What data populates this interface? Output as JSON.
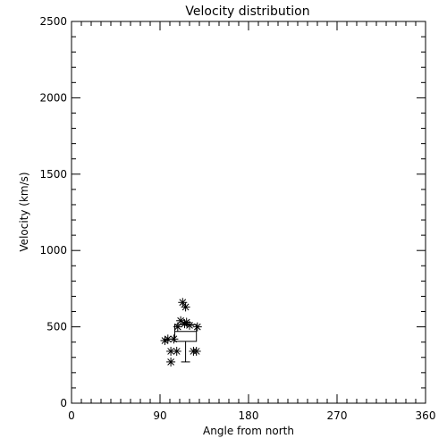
{
  "chart_data": {
    "type": "scatter",
    "title": "Velocity distribution",
    "xlabel": "Angle from north",
    "ylabel": "Velocity (km/s)",
    "xlim": [
      0,
      360
    ],
    "ylim": [
      0,
      2500
    ],
    "xticks": [
      0,
      90,
      180,
      270,
      360
    ],
    "yticks": [
      0,
      500,
      1000,
      1500,
      2000,
      2500
    ],
    "xtick_labels": [
      "0",
      "90",
      "180",
      "270",
      "360"
    ],
    "ytick_labels": [
      "0",
      "500",
      "1000",
      "1500",
      "2000",
      "2500"
    ],
    "grid": false,
    "legend": "none",
    "marker": "asterisk",
    "points": [
      {
        "x": 95,
        "y": 410
      },
      {
        "x": 98,
        "y": 420
      },
      {
        "x": 101,
        "y": 340
      },
      {
        "x": 101,
        "y": 270
      },
      {
        "x": 104,
        "y": 420
      },
      {
        "x": 107,
        "y": 340
      },
      {
        "x": 108,
        "y": 500
      },
      {
        "x": 111,
        "y": 540
      },
      {
        "x": 113,
        "y": 660
      },
      {
        "x": 115,
        "y": 520
      },
      {
        "x": 116,
        "y": 630
      },
      {
        "x": 117,
        "y": 530
      },
      {
        "x": 120,
        "y": 510
      },
      {
        "x": 124,
        "y": 340
      },
      {
        "x": 127,
        "y": 340
      },
      {
        "x": 128,
        "y": 500
      }
    ],
    "boxplot": {
      "x_left": 105,
      "x_right": 127,
      "q1": 405,
      "q3": 515,
      "median": 470,
      "whisker_low": 270,
      "whisker_high": 515
    }
  }
}
